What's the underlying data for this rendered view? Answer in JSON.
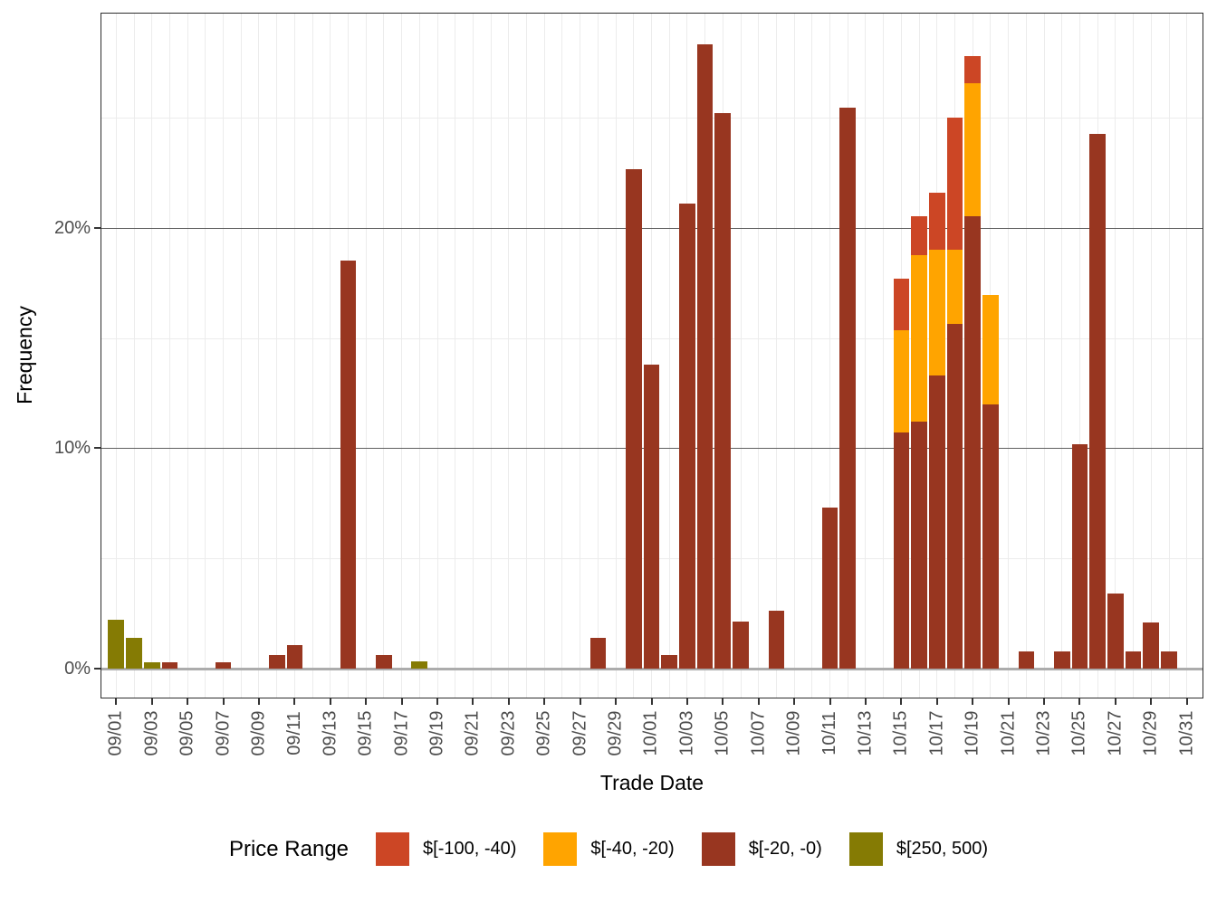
{
  "chart_data": {
    "type": "bar",
    "stacked": true,
    "title": "",
    "xlabel": "Trade Date",
    "ylabel": "Frequency",
    "legend_title": "Price Range",
    "legend_position": "bottom",
    "grid": true,
    "ylim_pct": [
      0,
      29.7
    ],
    "y_ticks": [
      {
        "label": "0%",
        "value": 0
      },
      {
        "label": "10%",
        "value": 10
      },
      {
        "label": "20%",
        "value": 20
      }
    ],
    "y_minor_ticks": [
      5,
      15,
      25
    ],
    "x_tick_labels": [
      "09/01",
      "09/03",
      "09/05",
      "09/07",
      "09/09",
      "09/11",
      "09/13",
      "09/15",
      "09/17",
      "09/19",
      "09/21",
      "09/23",
      "09/25",
      "09/27",
      "09/29",
      "10/01",
      "10/03",
      "10/05",
      "10/07",
      "10/09",
      "10/11",
      "10/13",
      "10/15",
      "10/17",
      "10/19",
      "10/21",
      "10/23",
      "10/25",
      "10/27",
      "10/29",
      "10/31"
    ],
    "legend": [
      {
        "key": "neg100_40",
        "label": "$[-100, -40)",
        "color": "#cc4625"
      },
      {
        "key": "neg40_20",
        "label": "$[-40, -20)",
        "color": "#ffa400"
      },
      {
        "key": "neg20_0",
        "label": "$[-20, -0)",
        "color": "#983620"
      },
      {
        "key": "p250_500",
        "label": "$[250, 500)",
        "color": "#857b04"
      }
    ],
    "bars": [
      {
        "date": "09/01",
        "stack": [
          [
            "p250_500",
            2.2
          ]
        ]
      },
      {
        "date": "09/02",
        "stack": [
          [
            "p250_500",
            1.4
          ]
        ]
      },
      {
        "date": "09/03",
        "stack": [
          [
            "p250_500",
            0.3
          ]
        ]
      },
      {
        "date": "09/04",
        "stack": [
          [
            "neg20_0",
            0.3
          ]
        ]
      },
      {
        "date": "09/07",
        "stack": [
          [
            "neg20_0",
            0.3
          ]
        ]
      },
      {
        "date": "09/10",
        "stack": [
          [
            "neg20_0",
            0.6
          ]
        ]
      },
      {
        "date": "09/11",
        "stack": [
          [
            "neg20_0",
            1.05
          ]
        ]
      },
      {
        "date": "09/14",
        "stack": [
          [
            "neg20_0",
            18.5
          ]
        ]
      },
      {
        "date": "09/16",
        "stack": [
          [
            "neg20_0",
            0.6
          ]
        ]
      },
      {
        "date": "09/18",
        "stack": [
          [
            "p250_500",
            0.33
          ]
        ]
      },
      {
        "date": "09/28",
        "stack": [
          [
            "neg20_0",
            1.4
          ]
        ]
      },
      {
        "date": "09/30",
        "stack": [
          [
            "neg20_0",
            22.65
          ]
        ]
      },
      {
        "date": "10/01",
        "stack": [
          [
            "neg20_0",
            13.8
          ]
        ]
      },
      {
        "date": "10/02",
        "stack": [
          [
            "neg20_0",
            0.6
          ]
        ]
      },
      {
        "date": "10/03",
        "stack": [
          [
            "neg20_0",
            21.1
          ]
        ]
      },
      {
        "date": "10/04",
        "stack": [
          [
            "neg20_0",
            28.35
          ]
        ]
      },
      {
        "date": "10/05",
        "stack": [
          [
            "neg20_0",
            25.2
          ]
        ]
      },
      {
        "date": "10/06",
        "stack": [
          [
            "neg20_0",
            2.15
          ]
        ]
      },
      {
        "date": "10/08",
        "stack": [
          [
            "neg20_0",
            2.64
          ]
        ]
      },
      {
        "date": "10/11",
        "stack": [
          [
            "neg20_0",
            7.3
          ]
        ]
      },
      {
        "date": "10/12",
        "stack": [
          [
            "neg20_0",
            25.45
          ]
        ]
      },
      {
        "date": "10/15",
        "stack": [
          [
            "neg20_0",
            10.7
          ],
          [
            "neg40_20",
            4.65
          ],
          [
            "neg100_40",
            2.35
          ]
        ]
      },
      {
        "date": "10/16",
        "stack": [
          [
            "neg20_0",
            11.2
          ],
          [
            "neg40_20",
            7.55
          ],
          [
            "neg100_40",
            1.8
          ]
        ]
      },
      {
        "date": "10/17",
        "stack": [
          [
            "neg20_0",
            13.3
          ],
          [
            "neg40_20",
            5.7
          ],
          [
            "neg100_40",
            2.6
          ]
        ]
      },
      {
        "date": "10/18",
        "stack": [
          [
            "neg20_0",
            15.65
          ],
          [
            "neg40_20",
            3.35
          ],
          [
            "neg100_40",
            6.0
          ]
        ]
      },
      {
        "date": "10/19",
        "stack": [
          [
            "neg20_0",
            20.55
          ],
          [
            "neg40_20",
            6.0
          ],
          [
            "neg100_40",
            1.25
          ]
        ]
      },
      {
        "date": "10/20",
        "stack": [
          [
            "neg20_0",
            12.0
          ],
          [
            "neg40_20",
            4.95
          ]
        ]
      },
      {
        "date": "10/22",
        "stack": [
          [
            "neg20_0",
            0.8
          ]
        ]
      },
      {
        "date": "10/24",
        "stack": [
          [
            "neg20_0",
            0.8
          ]
        ]
      },
      {
        "date": "10/25",
        "stack": [
          [
            "neg20_0",
            10.2
          ]
        ]
      },
      {
        "date": "10/26",
        "stack": [
          [
            "neg20_0",
            24.25
          ]
        ]
      },
      {
        "date": "10/27",
        "stack": [
          [
            "neg20_0",
            3.4
          ]
        ]
      },
      {
        "date": "10/28",
        "stack": [
          [
            "neg20_0",
            0.8
          ]
        ]
      },
      {
        "date": "10/29",
        "stack": [
          [
            "neg20_0",
            2.1
          ]
        ]
      },
      {
        "date": "10/30",
        "stack": [
          [
            "neg20_0",
            0.8
          ]
        ]
      }
    ]
  }
}
